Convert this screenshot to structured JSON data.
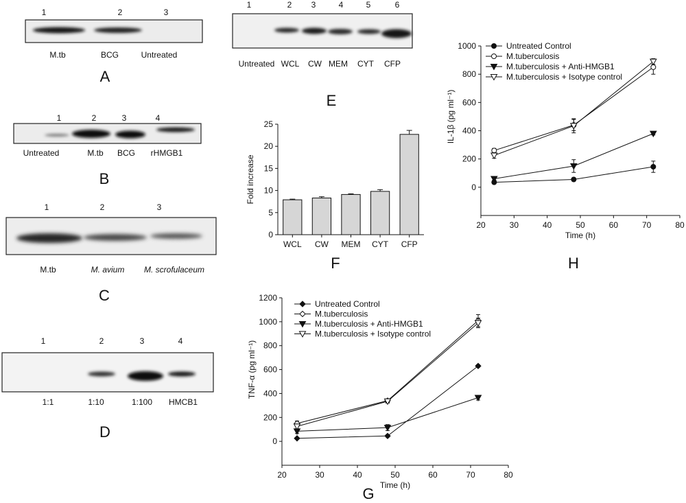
{
  "blots": {
    "A": {
      "letter": "A",
      "numbers": [
        "1",
        "2",
        "3"
      ],
      "labels": [
        "M.tb",
        "BCG",
        "Untreated"
      ],
      "label_italic": [
        false,
        false,
        false
      ]
    },
    "B": {
      "letter": "B",
      "numbers": [
        "1",
        "2",
        "3",
        "4"
      ],
      "labels": [
        "Untreated",
        "M.tb",
        "BCG",
        "rHMGB1"
      ],
      "label_italic": [
        false,
        false,
        false,
        false
      ]
    },
    "C": {
      "letter": "C",
      "numbers": [
        "1",
        "2",
        "3"
      ],
      "labels": [
        "M.tb",
        "M. avium",
        "M. scrofulaceum"
      ],
      "label_italic": [
        false,
        true,
        true
      ]
    },
    "D": {
      "letter": "D",
      "numbers": [
        "1",
        "2",
        "3",
        "4"
      ],
      "labels": [
        "1:1",
        "1:10",
        "1:100",
        "HMCB1"
      ],
      "label_italic": [
        false,
        false,
        false,
        false
      ]
    },
    "E": {
      "letter": "E",
      "numbers": [
        "1",
        "2",
        "3",
        "4",
        "5",
        "6"
      ],
      "labels": [
        "Untreated",
        "WCL",
        "CW",
        "MEM",
        "CYT",
        "CFP"
      ],
      "label_italic": [
        false,
        false,
        false,
        false,
        false,
        false
      ]
    }
  },
  "chart_data": [
    {
      "panel": "F",
      "type": "bar",
      "categories": [
        "WCL",
        "CW",
        "MEM",
        "CYT",
        "CFP"
      ],
      "values": [
        7.9,
        8.3,
        9.1,
        9.8,
        22.7
      ],
      "errors": [
        0.15,
        0.3,
        0.15,
        0.4,
        0.9
      ],
      "ylabel": "Fold increase",
      "ylim": [
        0,
        25
      ],
      "yticks": [
        0,
        5,
        10,
        15,
        20,
        25
      ],
      "bar_color": "#d6d6d6"
    },
    {
      "panel": "H",
      "type": "line",
      "xlabel": "Time (h)",
      "ylabel": "IL-1β (pg ml⁻¹)",
      "xlim": [
        20,
        80
      ],
      "ylim": [
        -200,
        1000
      ],
      "xticks": [
        20,
        30,
        40,
        50,
        60,
        70,
        80
      ],
      "yticks": [
        0,
        200,
        400,
        600,
        800,
        1000
      ],
      "x": [
        24,
        48,
        72
      ],
      "legend": "top-left",
      "series": [
        {
          "name": "Untreated Control",
          "marker": "circle-filled",
          "values": [
            35,
            55,
            145
          ],
          "errors": [
            10,
            10,
            40
          ]
        },
        {
          "name": "M.tuberculosis",
          "marker": "circle-open",
          "values": [
            260,
            440,
            850
          ],
          "errors": [
            15,
            40,
            50
          ]
        },
        {
          "name": "M.tuberculosis + Anti-HMGB1",
          "marker": "triangle-down-filled",
          "values": [
            60,
            150,
            380
          ],
          "errors": [
            10,
            45,
            10
          ]
        },
        {
          "name": "M.tuberculosis + Isotype control",
          "marker": "triangle-down-open",
          "values": [
            225,
            435,
            890
          ],
          "errors": [
            20,
            50,
            20
          ]
        }
      ]
    },
    {
      "panel": "G",
      "type": "line",
      "xlabel": "Time (h)",
      "ylabel": "TNF-α (pg ml⁻¹)",
      "xlim": [
        20,
        80
      ],
      "ylim": [
        -200,
        1200
      ],
      "xticks": [
        20,
        30,
        40,
        50,
        60,
        70,
        80
      ],
      "yticks": [
        0,
        200,
        400,
        600,
        800,
        1000,
        1200
      ],
      "x": [
        24,
        48,
        72
      ],
      "legend": "top-left",
      "series": [
        {
          "name": "Untreated Control",
          "marker": "diamond-filled",
          "values": [
            25,
            45,
            630
          ],
          "errors": [
            5,
            10,
            10
          ]
        },
        {
          "name": "M.tuberculosis",
          "marker": "diamond-open",
          "values": [
            150,
            340,
            1010
          ],
          "errors": [
            20,
            15,
            50
          ]
        },
        {
          "name": "M.tuberculosis + Anti-HMGB1",
          "marker": "triangle-down-filled",
          "values": [
            85,
            115,
            365
          ],
          "errors": [
            20,
            25,
            20
          ]
        },
        {
          "name": "M.tuberculosis + Isotype control",
          "marker": "triangle-down-open",
          "values": [
            125,
            335,
            990
          ],
          "errors": [
            20,
            15,
            40
          ]
        }
      ]
    }
  ]
}
